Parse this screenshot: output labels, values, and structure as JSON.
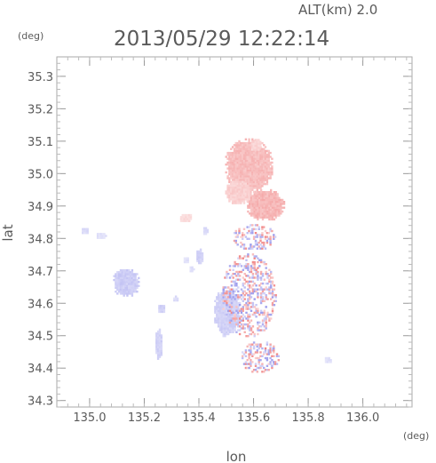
{
  "header": {
    "altitude_label": "ALT(km) 2.0",
    "timestamp": "2013/05/29 12:22:14"
  },
  "chart_data": {
    "type": "scatter",
    "title": "2013/05/29 12:22:14",
    "subtitle": "ALT(km) 2.0",
    "xlabel": "lon",
    "ylabel": "lat",
    "x_unit": "(deg)",
    "y_unit": "(deg)",
    "xlim": [
      134.88,
      136.18
    ],
    "ylim": [
      34.28,
      35.36
    ],
    "x_ticks": [
      135.0,
      135.2,
      135.4,
      135.6,
      135.8,
      136.0
    ],
    "x_tick_labels": [
      "135.0",
      "135.2",
      "135.4",
      "135.6",
      "135.8",
      "136.0"
    ],
    "y_ticks": [
      34.3,
      34.4,
      34.5,
      34.6,
      34.7,
      34.8,
      34.9,
      35.0,
      35.1,
      35.2,
      35.3
    ],
    "y_tick_labels": [
      "34.3",
      "34.4",
      "34.5",
      "34.6",
      "34.7",
      "34.8",
      "34.9",
      "35.0",
      "35.1",
      "35.2",
      "35.3"
    ],
    "minor_ticks_per_major": 5,
    "grid": false,
    "colors": {
      "positive": "#f08a8a",
      "negative": "#9a9af0",
      "frame": "#aaaaaa",
      "text": "#5a5a5a"
    },
    "regions": [
      {
        "polarity": "positive",
        "lon": 135.58,
        "lat": 35.02,
        "rlon": 0.09,
        "rlat": 0.085,
        "strength": 0.55
      },
      {
        "polarity": "positive",
        "lon": 135.64,
        "lat": 34.9,
        "rlon": 0.07,
        "rlat": 0.05,
        "strength": 0.6
      },
      {
        "polarity": "positive",
        "lon": 135.54,
        "lat": 34.94,
        "rlon": 0.05,
        "rlat": 0.04,
        "strength": 0.4
      },
      {
        "polarity": "positive",
        "lon": 135.605,
        "lat": 35.085,
        "rlon": 0.02,
        "rlat": 0.02,
        "strength": 0.35
      },
      {
        "polarity": "positive",
        "lon": 135.35,
        "lat": 34.86,
        "rlon": 0.025,
        "rlat": 0.015,
        "strength": 0.3
      },
      {
        "polarity": "negative",
        "lon": 135.5,
        "lat": 34.57,
        "rlon": 0.05,
        "rlat": 0.08,
        "strength": 0.45
      },
      {
        "polarity": "negative",
        "lon": 135.13,
        "lat": 34.66,
        "rlon": 0.05,
        "rlat": 0.045,
        "strength": 0.5
      },
      {
        "polarity": "negative",
        "lon": 135.25,
        "lat": 34.47,
        "rlon": 0.015,
        "rlat": 0.05,
        "strength": 0.45
      },
      {
        "polarity": "negative",
        "lon": 135.26,
        "lat": 34.58,
        "rlon": 0.015,
        "rlat": 0.015,
        "strength": 0.45
      },
      {
        "polarity": "negative",
        "lon": 135.31,
        "lat": 34.61,
        "rlon": 0.01,
        "rlat": 0.01,
        "strength": 0.35
      },
      {
        "polarity": "negative",
        "lon": 135.4,
        "lat": 34.74,
        "rlon": 0.015,
        "rlat": 0.025,
        "strength": 0.45
      },
      {
        "polarity": "negative",
        "lon": 135.35,
        "lat": 34.73,
        "rlon": 0.012,
        "rlat": 0.012,
        "strength": 0.3
      },
      {
        "polarity": "negative",
        "lon": 135.37,
        "lat": 34.7,
        "rlon": 0.01,
        "rlat": 0.01,
        "strength": 0.3
      },
      {
        "polarity": "negative",
        "lon": 135.42,
        "lat": 34.82,
        "rlon": 0.01,
        "rlat": 0.015,
        "strength": 0.35
      },
      {
        "polarity": "negative",
        "lon": 134.98,
        "lat": 34.82,
        "rlon": 0.015,
        "rlat": 0.012,
        "strength": 0.35
      },
      {
        "polarity": "negative",
        "lon": 135.04,
        "lat": 34.805,
        "rlon": 0.02,
        "rlat": 0.012,
        "strength": 0.3
      },
      {
        "polarity": "negative",
        "lon": 135.87,
        "lat": 34.42,
        "rlon": 0.015,
        "rlat": 0.01,
        "strength": 0.3
      },
      {
        "polarity": "mixed",
        "lon": 135.58,
        "lat": 34.62,
        "rlon": 0.1,
        "rlat": 0.13,
        "strength": 0.7
      },
      {
        "polarity": "mixed",
        "lon": 135.62,
        "lat": 34.43,
        "rlon": 0.07,
        "rlat": 0.05,
        "strength": 0.7
      },
      {
        "polarity": "mixed",
        "lon": 135.6,
        "lat": 34.8,
        "rlon": 0.08,
        "rlat": 0.04,
        "strength": 0.7
      }
    ]
  }
}
